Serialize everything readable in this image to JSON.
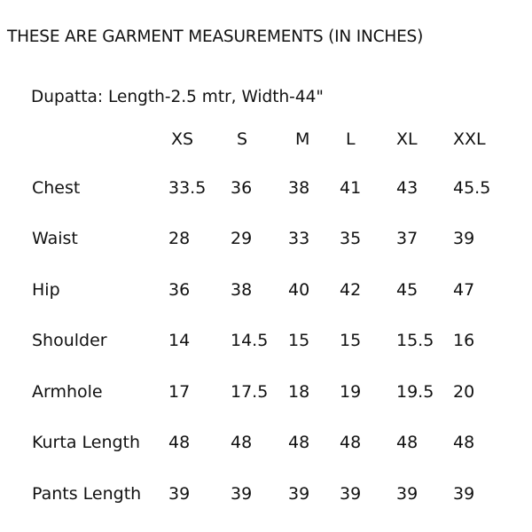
{
  "title": "THESE ARE GARMENT MEASUREMENTS (IN INCHES)",
  "dupatta": "Dupatta: Length-2.5 mtr, Width-44\"",
  "sizes": [
    "XS",
    "S",
    "M",
    "L",
    "XL",
    "XXL"
  ],
  "rows": [
    {
      "label": "Chest",
      "values": [
        "33.5",
        "36",
        "38",
        "41",
        "43",
        "45.5"
      ]
    },
    {
      "label": "Waist",
      "values": [
        "28",
        "29",
        "33",
        "35",
        "37",
        "39"
      ]
    },
    {
      "label": "Hip",
      "values": [
        "36",
        "38",
        "40",
        "42",
        "45",
        "47"
      ]
    },
    {
      "label": "Shoulder",
      "values": [
        "14",
        "14.5",
        "15",
        "15",
        "15.5",
        "16"
      ]
    },
    {
      "label": "Armhole",
      "values": [
        "17",
        "17.5",
        "18",
        "19",
        "19.5",
        "20"
      ]
    },
    {
      "label": "Kurta Length",
      "values": [
        "48",
        "48",
        "48",
        "48",
        "48",
        "48"
      ]
    },
    {
      "label": "Pants Length",
      "values": [
        "39",
        "39",
        "39",
        "39",
        "39",
        "39"
      ]
    }
  ]
}
